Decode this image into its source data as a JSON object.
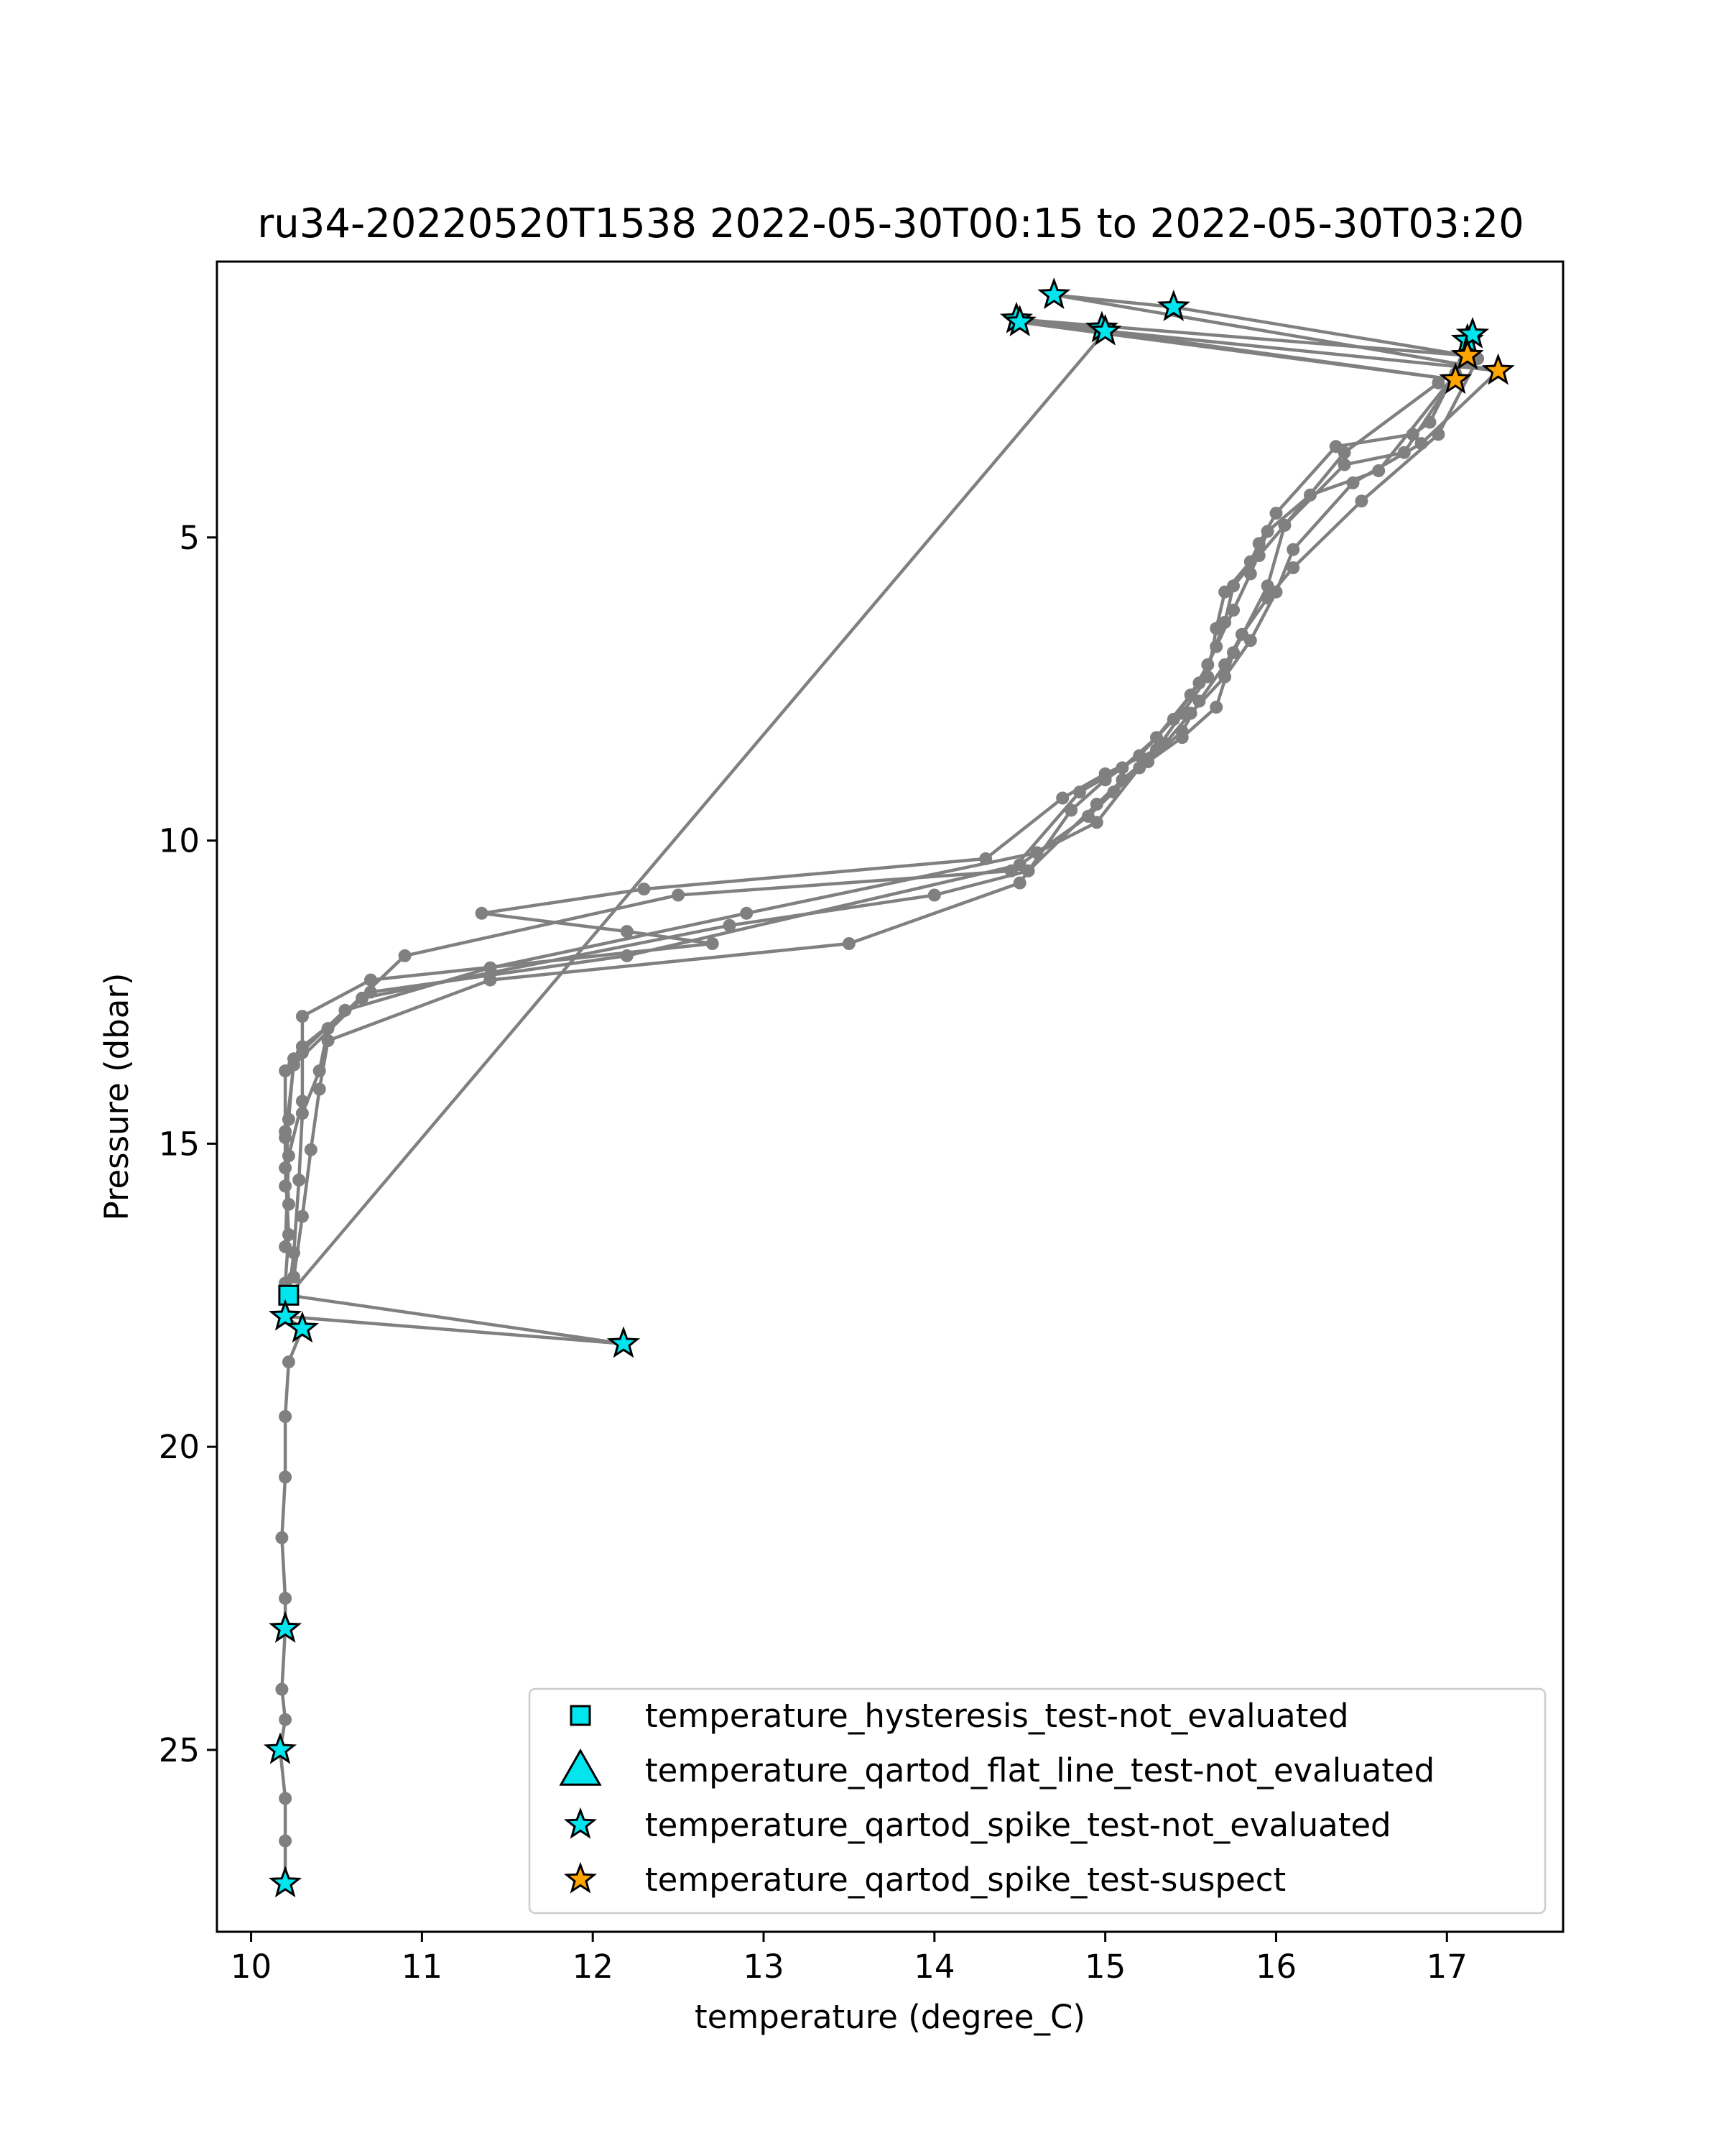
{
  "chart_data": {
    "type": "scatter",
    "title": "ru34-20220520T1538 2022-05-30T00:15 to 2022-05-30T03:20",
    "xlabel": "temperature (degree_C)",
    "ylabel": "Pressure (dbar)",
    "xlim": [
      9.8,
      17.68
    ],
    "ylim": [
      28.0,
      0.45
    ],
    "y_inverted": true,
    "xticks": [
      10,
      11,
      12,
      13,
      14,
      15,
      16,
      17
    ],
    "yticks": [
      5,
      10,
      15,
      20,
      25
    ],
    "grid": false,
    "legend_position": "lower right",
    "colors": {
      "profile": "#808080",
      "not_evaluated": "#00e5ee",
      "suspect": "#ffa500",
      "edge": "#000000"
    },
    "profile_segments": [
      [
        [
          17.15,
          1.7
        ],
        [
          16.9,
          3.1
        ],
        [
          16.8,
          3.3
        ],
        [
          16.35,
          3.5
        ],
        [
          16.0,
          4.6
        ],
        [
          15.9,
          5.1
        ],
        [
          15.85,
          5.4
        ],
        [
          15.7,
          5.9
        ],
        [
          15.65,
          6.5
        ],
        [
          15.6,
          7.3
        ],
        [
          15.45,
          7.9
        ],
        [
          15.3,
          8.5
        ],
        [
          15.0,
          8.9
        ],
        [
          14.75,
          9.3
        ],
        [
          14.3,
          10.3
        ],
        [
          12.3,
          10.8
        ],
        [
          11.35,
          11.2
        ],
        [
          12.2,
          11.5
        ],
        [
          12.7,
          11.7
        ],
        [
          10.7,
          12.3
        ],
        [
          10.3,
          12.9
        ],
        [
          10.3,
          13.5
        ],
        [
          10.2,
          13.8
        ],
        [
          10.2,
          14.8
        ],
        [
          10.2,
          15.4
        ],
        [
          10.22,
          16.5
        ],
        [
          10.2,
          17.3
        ],
        [
          10.22,
          17.5
        ]
      ],
      [
        [
          17.1,
          2.1
        ],
        [
          16.75,
          3.6
        ],
        [
          16.4,
          3.8
        ],
        [
          16.05,
          4.8
        ],
        [
          15.9,
          5.3
        ],
        [
          15.75,
          5.8
        ],
        [
          15.7,
          6.4
        ],
        [
          15.6,
          7.1
        ],
        [
          15.5,
          7.6
        ],
        [
          15.3,
          8.3
        ],
        [
          15.1,
          8.8
        ],
        [
          14.85,
          9.2
        ],
        [
          14.45,
          10.5
        ],
        [
          12.5,
          10.9
        ],
        [
          10.9,
          11.9
        ],
        [
          10.45,
          13.1
        ],
        [
          10.4,
          13.8
        ],
        [
          10.3,
          14.5
        ],
        [
          10.28,
          15.6
        ],
        [
          10.25,
          16.8
        ],
        [
          10.22,
          17.5
        ]
      ],
      [
        [
          17.05,
          2.3
        ],
        [
          16.6,
          3.9
        ],
        [
          16.2,
          4.3
        ],
        [
          15.95,
          4.9
        ],
        [
          15.85,
          5.6
        ],
        [
          15.75,
          6.2
        ],
        [
          15.65,
          6.8
        ],
        [
          15.55,
          7.4
        ],
        [
          15.4,
          8.0
        ],
        [
          15.2,
          8.6
        ],
        [
          15.0,
          9.0
        ],
        [
          14.8,
          9.5
        ],
        [
          14.5,
          10.7
        ],
        [
          13.5,
          11.7
        ],
        [
          11.4,
          12.3
        ],
        [
          10.45,
          13.3
        ],
        [
          10.4,
          14.1
        ],
        [
          10.35,
          15.1
        ],
        [
          10.3,
          16.2
        ],
        [
          10.25,
          17.2
        ]
      ],
      [
        [
          17.3,
          2.25
        ],
        [
          16.85,
          3.45
        ],
        [
          16.45,
          4.1
        ],
        [
          16.1,
          5.2
        ],
        [
          16.0,
          5.9
        ],
        [
          15.85,
          6.7
        ],
        [
          15.7,
          7.3
        ],
        [
          15.5,
          7.9
        ],
        [
          15.35,
          8.4
        ],
        [
          15.1,
          9.0
        ],
        [
          14.95,
          9.4
        ],
        [
          14.55,
          10.5
        ],
        [
          14.0,
          10.9
        ],
        [
          12.8,
          11.4
        ],
        [
          10.65,
          12.6
        ],
        [
          10.25,
          13.7
        ],
        [
          10.2,
          14.9
        ],
        [
          10.22,
          16.0
        ]
      ],
      [
        [
          17.18,
          2.05
        ],
        [
          16.95,
          3.3
        ],
        [
          16.5,
          4.4
        ],
        [
          16.1,
          5.5
        ],
        [
          15.95,
          6.0
        ],
        [
          15.8,
          6.6
        ],
        [
          15.7,
          7.1
        ],
        [
          15.55,
          7.7
        ],
        [
          15.45,
          8.2
        ],
        [
          15.25,
          8.7
        ],
        [
          15.05,
          9.2
        ],
        [
          14.9,
          9.6
        ],
        [
          14.5,
          10.4
        ],
        [
          12.2,
          11.9
        ],
        [
          10.7,
          12.5
        ],
        [
          10.3,
          13.4
        ],
        [
          10.3,
          14.3
        ],
        [
          10.22,
          15.2
        ],
        [
          10.2,
          16.7
        ]
      ],
      [
        [
          16.95,
          2.45
        ],
        [
          16.4,
          3.6
        ],
        [
          16.05,
          4.8
        ],
        [
          15.95,
          5.8
        ],
        [
          15.75,
          6.9
        ],
        [
          15.65,
          7.8
        ],
        [
          15.45,
          8.3
        ],
        [
          15.2,
          8.8
        ],
        [
          14.95,
          9.7
        ],
        [
          14.6,
          10.2
        ],
        [
          12.9,
          11.2
        ],
        [
          11.4,
          12.1
        ],
        [
          10.55,
          12.8
        ],
        [
          10.25,
          13.6
        ],
        [
          10.22,
          14.6
        ],
        [
          10.2,
          15.7
        ]
      ],
      [
        [
          14.98,
          1.55
        ],
        [
          14.48,
          1.4
        ],
        [
          17.12,
          2.0
        ],
        [
          15.4,
          1.2
        ],
        [
          14.7,
          1.0
        ],
        [
          17.3,
          2.25
        ],
        [
          14.5,
          1.45
        ],
        [
          17.05,
          2.4
        ],
        [
          15.0,
          1.6
        ],
        [
          10.22,
          17.5
        ],
        [
          12.18,
          18.3
        ],
        [
          10.2,
          17.85
        ],
        [
          10.3,
          18.05
        ],
        [
          10.22,
          18.6
        ],
        [
          10.2,
          19.5
        ],
        [
          10.2,
          20.5
        ],
        [
          10.18,
          21.5
        ],
        [
          10.2,
          22.5
        ],
        [
          10.2,
          23.0
        ],
        [
          10.18,
          24.0
        ],
        [
          10.2,
          24.5
        ],
        [
          10.17,
          25.0
        ],
        [
          10.2,
          25.8
        ],
        [
          10.2,
          26.5
        ],
        [
          10.2,
          27.2
        ]
      ]
    ],
    "series": [
      {
        "name": "temperature_hysteresis_test-not_evaluated",
        "marker": "square",
        "color": "#00e5ee",
        "points": [
          {
            "x": 10.22,
            "y": 17.5
          }
        ]
      },
      {
        "name": "temperature_qartod_flat_line_test-not_evaluated",
        "marker": "triangle",
        "color": "#00e5ee",
        "points": []
      },
      {
        "name": "temperature_qartod_spike_test-not_evaluated",
        "marker": "star",
        "color": "#00e5ee",
        "points": [
          {
            "x": 14.7,
            "y": 1.0
          },
          {
            "x": 15.4,
            "y": 1.2
          },
          {
            "x": 14.48,
            "y": 1.4
          },
          {
            "x": 14.5,
            "y": 1.45
          },
          {
            "x": 14.98,
            "y": 1.55
          },
          {
            "x": 15.0,
            "y": 1.6
          },
          {
            "x": 17.12,
            "y": 1.75
          },
          {
            "x": 17.15,
            "y": 1.65
          },
          {
            "x": 10.2,
            "y": 17.85
          },
          {
            "x": 10.3,
            "y": 18.05
          },
          {
            "x": 12.18,
            "y": 18.3
          },
          {
            "x": 10.2,
            "y": 23.0
          },
          {
            "x": 10.17,
            "y": 25.0
          },
          {
            "x": 10.2,
            "y": 27.2
          }
        ]
      },
      {
        "name": "temperature_qartod_spike_test-suspect",
        "marker": "star",
        "color": "#ffa500",
        "points": [
          {
            "x": 17.12,
            "y": 2.0
          },
          {
            "x": 17.3,
            "y": 2.25
          },
          {
            "x": 17.05,
            "y": 2.4
          }
        ]
      }
    ]
  }
}
